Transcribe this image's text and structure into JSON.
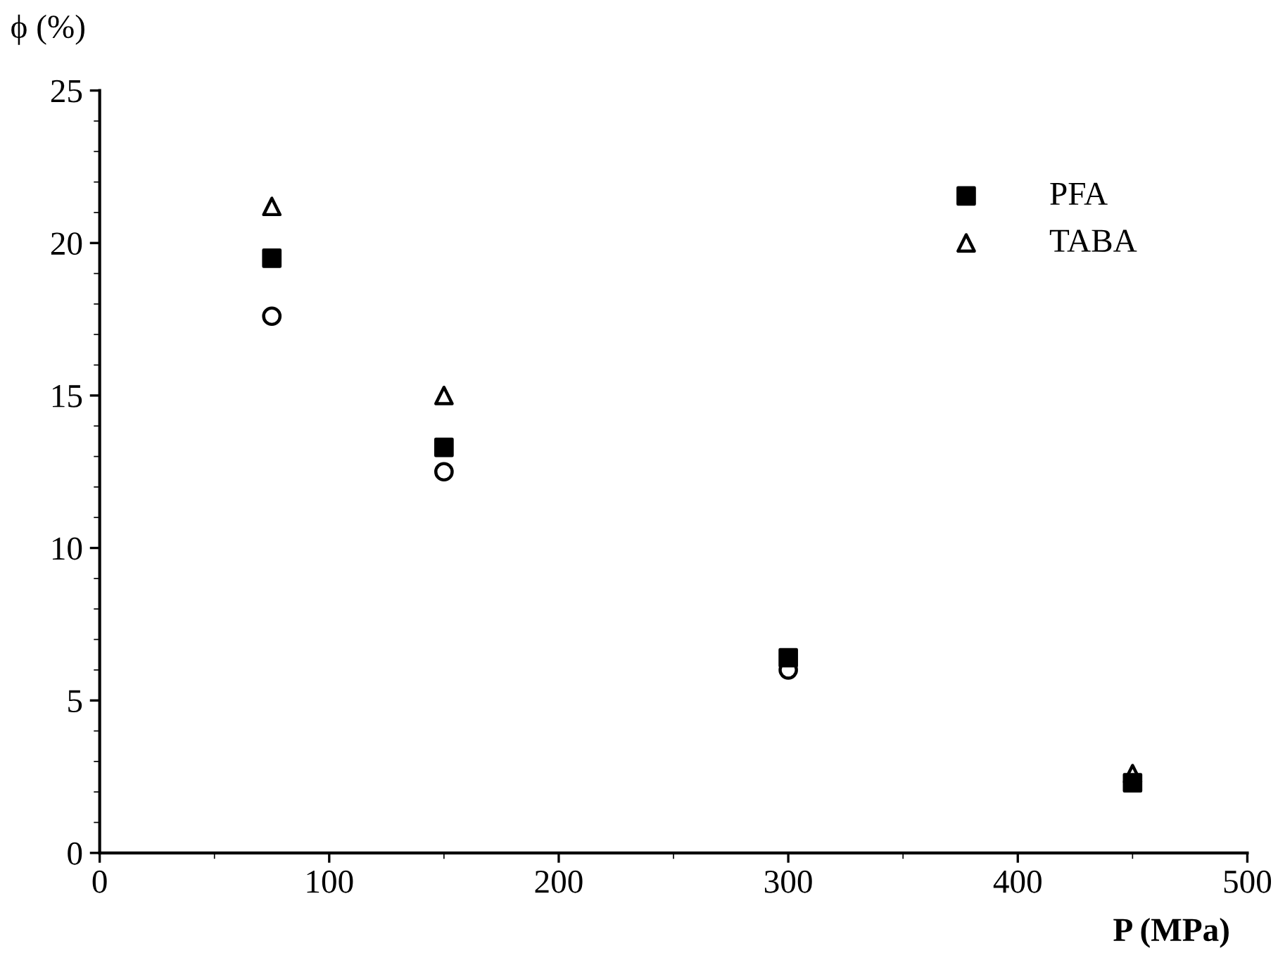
{
  "chart_data": {
    "type": "scatter",
    "xlabel": "P (MPa)",
    "ylabel": "ϕ (%)",
    "x": [
      75,
      150,
      300,
      450
    ],
    "series": [
      {
        "name": "PFA",
        "color": "#000000",
        "marker": "square",
        "values": [
          19.5,
          13.3,
          6.4,
          2.3
        ]
      },
      {
        "color": "#000000",
        "marker": "circle",
        "values": [
          17.6,
          12.5,
          6.0,
          null
        ]
      },
      {
        "name": "TABA",
        "color": "#000000",
        "marker": "triangle",
        "values": [
          21.2,
          15.0,
          null,
          2.6
        ]
      }
    ],
    "xlim": [
      0,
      500
    ],
    "xticks": [
      0,
      100,
      200,
      300,
      400,
      500
    ],
    "ylim": [
      0,
      25
    ],
    "yticks": [
      0,
      5,
      10,
      15,
      20,
      25
    ],
    "grid": false,
    "legend": "top right"
  }
}
